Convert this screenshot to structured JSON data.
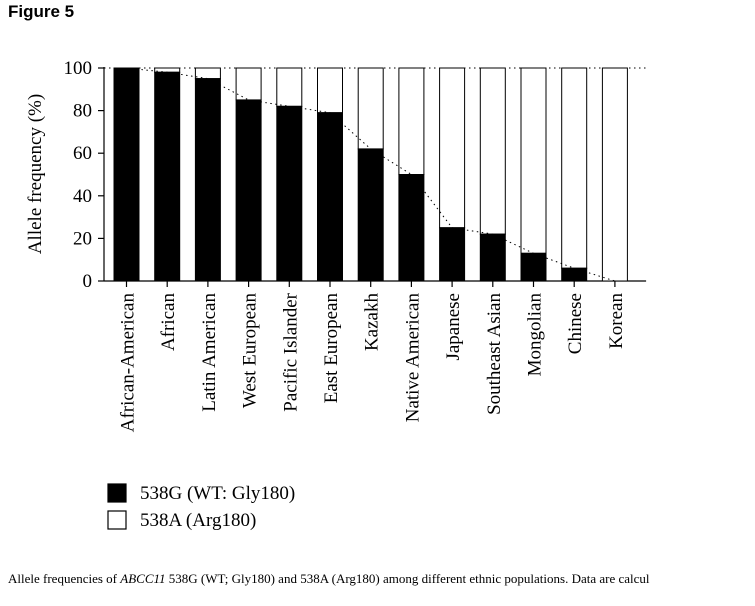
{
  "figure_label": "Figure 5",
  "caption": {
    "prefix": "Allele frequencies of ",
    "gene": "ABCC11",
    "suffix": " 538G (WT; Gly180) and 538A (Arg180) among different ethnic populations. Data are calcul"
  },
  "chart_data": {
    "type": "bar",
    "stacked": true,
    "title": "",
    "xlabel": "",
    "ylabel": "Allele frequency (%)",
    "ylim": [
      0,
      100
    ],
    "yticks": [
      0,
      20,
      40,
      60,
      80,
      100
    ],
    "categories": [
      "African-American",
      "African",
      "Latin American",
      "West European",
      "Pacific Islander",
      "East European",
      "Kazakh",
      "Native American",
      "Japanese",
      "Southeast Asian",
      "Mongolian",
      "Chinese",
      "Korean"
    ],
    "series": [
      {
        "name": "538G (WT: Gly180)",
        "color": "#000000",
        "values": [
          100,
          98,
          95,
          85,
          82,
          79,
          62,
          50,
          25,
          22,
          13,
          6,
          0
        ]
      },
      {
        "name": "538A (Arg180)",
        "color": "#ffffff",
        "values": [
          0,
          2,
          5,
          15,
          18,
          21,
          38,
          50,
          75,
          78,
          87,
          94,
          100
        ]
      }
    ],
    "trend_line": "dotted line through tops of 538G bars",
    "reference_line": "dotted line at 100",
    "legend_position": "bottom-left",
    "grid": false
  }
}
